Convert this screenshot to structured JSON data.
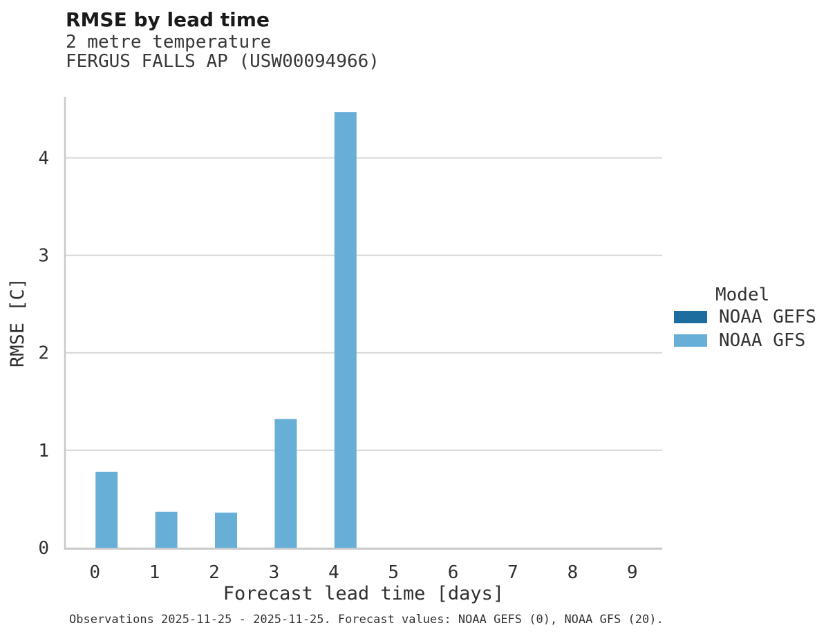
{
  "header": {
    "title": "RMSE by lead time",
    "subtitle1": "2 metre temperature",
    "subtitle2": "FERGUS FALLS AP (USW00094966)"
  },
  "legend": {
    "title": "Model",
    "items": [
      {
        "label": "NOAA GEFS",
        "color": "#1d6d9e"
      },
      {
        "label": "NOAA GFS",
        "color": "#68afd8"
      }
    ]
  },
  "footnote": "Observations 2025-11-25 - 2025-11-25. Forecast values: NOAA GEFS (0), NOAA GFS (20).",
  "colors": {
    "gefs": "#1d6d9e",
    "gfs": "#68afd8",
    "gridline": "#d6d6d6",
    "axis_line": "#c9c9c9",
    "tick_text": "#2f2f2f"
  },
  "chart_data": {
    "type": "bar",
    "title": "RMSE by lead time",
    "subtitle": [
      "2 metre temperature",
      "FERGUS FALLS AP (USW00094966)"
    ],
    "xlabel": "Forecast lead time [days]",
    "ylabel": "RMSE [C]",
    "categories": [
      "0",
      "1",
      "2",
      "3",
      "4",
      "5",
      "6",
      "7",
      "8",
      "9"
    ],
    "series": [
      {
        "name": "NOAA GEFS",
        "color": "#1d6d9e",
        "values": [
          0,
          0,
          0,
          0,
          0,
          0,
          0,
          0,
          0,
          0
        ]
      },
      {
        "name": "NOAA GFS",
        "color": "#68afd8",
        "values": [
          0.78,
          0.37,
          0.36,
          1.32,
          4.47,
          0,
          0,
          0,
          0,
          0
        ]
      }
    ],
    "ylim": [
      0,
      4.62
    ],
    "yticks": [
      0,
      1,
      2,
      3,
      4
    ],
    "grid": true,
    "legend_position": "right",
    "legend_title": "Model",
    "note": "Observations 2025-11-25 - 2025-11-25. Forecast values: NOAA GEFS (0), NOAA GFS (20)."
  }
}
